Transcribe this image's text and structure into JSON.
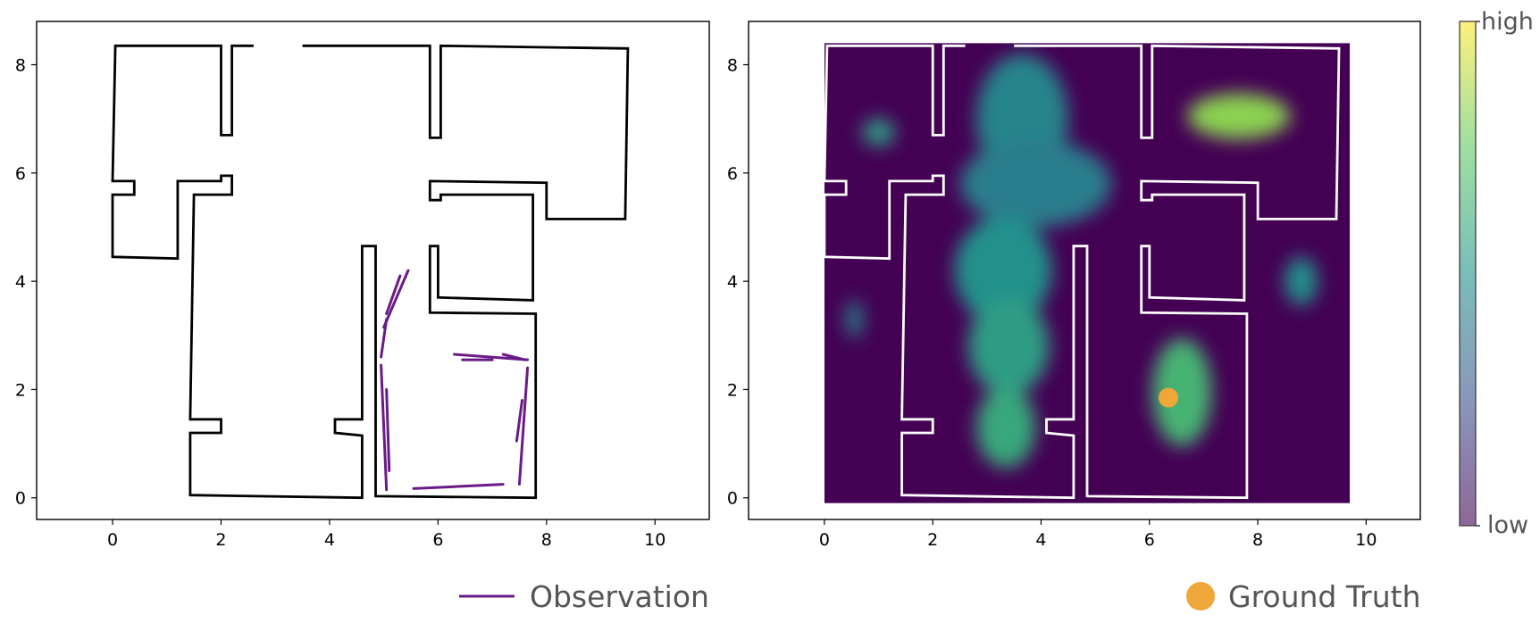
{
  "chart_data": [
    {
      "type": "line",
      "panel": "left",
      "xlim": [
        -1.4,
        11.0
      ],
      "ylim": [
        -0.4,
        8.8
      ],
      "xticks": [
        0,
        2,
        4,
        6,
        8,
        10
      ],
      "yticks": [
        0,
        2,
        4,
        6,
        8
      ],
      "grid": false,
      "series": [
        {
          "role": "walls",
          "color": "#000000",
          "polylines": [
            [
              [
                2.6,
                8.35
              ],
              [
                2.2,
                8.35
              ],
              [
                2.2,
                6.7
              ],
              [
                2.0,
                6.7
              ],
              [
                2.0,
                8.35
              ],
              [
                0.05,
                8.35
              ],
              [
                0.0,
                5.85
              ],
              [
                0.4,
                5.85
              ],
              [
                0.4,
                5.6
              ],
              [
                0.0,
                5.6
              ],
              [
                0.0,
                4.45
              ],
              [
                1.2,
                4.42
              ],
              [
                1.2,
                5.85
              ],
              [
                2.0,
                5.85
              ],
              [
                2.0,
                5.95
              ],
              [
                2.2,
                5.95
              ],
              [
                2.2,
                5.6
              ],
              [
                1.5,
                5.6
              ],
              [
                1.43,
                1.45
              ],
              [
                2.0,
                1.45
              ],
              [
                2.0,
                1.2
              ],
              [
                1.43,
                1.2
              ],
              [
                1.43,
                0.05
              ],
              [
                4.6,
                0.0
              ],
              [
                4.6,
                1.15
              ],
              [
                4.1,
                1.2
              ],
              [
                4.1,
                1.45
              ],
              [
                4.6,
                1.45
              ],
              [
                4.6,
                4.65
              ],
              [
                4.85,
                4.65
              ],
              [
                4.85,
                0.03
              ],
              [
                7.8,
                0.0
              ],
              [
                7.8,
                3.4
              ],
              [
                5.85,
                3.42
              ],
              [
                5.85,
                4.65
              ],
              [
                6.0,
                4.65
              ],
              [
                6.0,
                3.7
              ],
              [
                7.75,
                3.65
              ],
              [
                7.75,
                5.6
              ],
              [
                6.05,
                5.6
              ],
              [
                6.05,
                5.5
              ],
              [
                5.85,
                5.5
              ],
              [
                5.85,
                5.85
              ],
              [
                8.0,
                5.82
              ],
              [
                8.0,
                5.15
              ],
              [
                9.45,
                5.15
              ],
              [
                9.5,
                8.3
              ],
              [
                6.05,
                8.35
              ],
              [
                6.05,
                6.65
              ],
              [
                5.85,
                6.65
              ],
              [
                5.85,
                8.35
              ],
              [
                3.5,
                8.35
              ]
            ]
          ]
        },
        {
          "role": "observation",
          "color": "#6a1b86",
          "segments": [
            [
              [
                5.3,
                4.1
              ],
              [
                5.05,
                3.4
              ]
            ],
            [
              [
                5.45,
                4.2
              ],
              [
                5.0,
                3.15
              ]
            ],
            [
              [
                5.05,
                3.3
              ],
              [
                4.95,
                2.6
              ]
            ],
            [
              [
                4.95,
                2.45
              ],
              [
                5.05,
                0.15
              ]
            ],
            [
              [
                5.05,
                2.0
              ],
              [
                5.1,
                0.5
              ]
            ],
            [
              [
                7.65,
                2.4
              ],
              [
                7.5,
                0.25
              ]
            ],
            [
              [
                7.55,
                1.8
              ],
              [
                7.45,
                1.05
              ]
            ],
            [
              [
                7.2,
                0.25
              ],
              [
                5.55,
                0.17
              ]
            ],
            [
              [
                6.3,
                2.65
              ],
              [
                7.65,
                2.55
              ]
            ],
            [
              [
                6.45,
                2.55
              ],
              [
                7.0,
                2.55
              ]
            ],
            [
              [
                7.2,
                2.65
              ],
              [
                7.6,
                2.55
              ]
            ]
          ]
        }
      ]
    },
    {
      "type": "heatmap",
      "panel": "right",
      "xlim": [
        -1.4,
        11.0
      ],
      "ylim": [
        -0.4,
        8.8
      ],
      "xticks": [
        0,
        2,
        4,
        6,
        8,
        10
      ],
      "yticks": [
        0,
        2,
        4,
        6,
        8
      ],
      "grid": false,
      "colormap": "viridis",
      "background": "#440154",
      "extent": [
        0.0,
        9.7,
        -0.1,
        8.4
      ],
      "blobs": [
        {
          "cx": 3.65,
          "cy": 7.0,
          "rx": 0.85,
          "ry": 1.2,
          "level": 0.45
        },
        {
          "cx": 3.9,
          "cy": 5.8,
          "rx": 1.4,
          "ry": 0.8,
          "level": 0.42
        },
        {
          "cx": 3.3,
          "cy": 4.2,
          "rx": 0.9,
          "ry": 1.0,
          "level": 0.5
        },
        {
          "cx": 3.4,
          "cy": 2.8,
          "rx": 0.75,
          "ry": 0.9,
          "level": 0.55
        },
        {
          "cx": 3.35,
          "cy": 1.3,
          "rx": 0.55,
          "ry": 0.75,
          "level": 0.6
        },
        {
          "cx": 7.65,
          "cy": 7.05,
          "rx": 0.95,
          "ry": 0.42,
          "level": 0.82
        },
        {
          "cx": 6.6,
          "cy": 1.95,
          "rx": 0.55,
          "ry": 1.0,
          "level": 0.65
        },
        {
          "cx": 1.0,
          "cy": 6.75,
          "rx": 0.3,
          "ry": 0.25,
          "level": 0.55
        },
        {
          "cx": 8.8,
          "cy": 4.0,
          "rx": 0.3,
          "ry": 0.45,
          "level": 0.5
        },
        {
          "cx": 0.55,
          "cy": 3.3,
          "rx": 0.15,
          "ry": 0.35,
          "level": 0.45
        }
      ],
      "walls_color": "#ffffff",
      "ground_truth": {
        "x": 6.35,
        "y": 1.85,
        "color": "#f0a73a"
      }
    }
  ],
  "legend": {
    "observation_label": "Observation",
    "ground_truth_label": "Ground Truth"
  },
  "colorbar": {
    "high_label": "high",
    "low_label": "low"
  }
}
